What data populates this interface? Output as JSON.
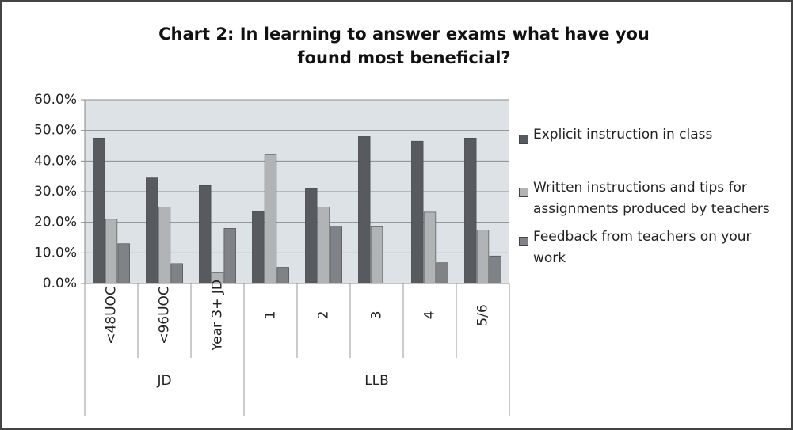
{
  "chart_data": {
    "type": "bar",
    "title": "Chart 2: In learning to answer exams what have you found most beneficial?",
    "groups": [
      {
        "name": "JD",
        "categories": [
          "<48UOC",
          "<96UOC",
          "Year 3+ JD"
        ]
      },
      {
        "name": "LLB",
        "categories": [
          "1",
          "2",
          "3",
          "4",
          "5/6"
        ]
      }
    ],
    "series": [
      {
        "name": "Explicit instruction in class",
        "color": "#575b60",
        "values": [
          47.5,
          34.5,
          32,
          23.5,
          31,
          48,
          46.5,
          47.5
        ]
      },
      {
        "name": "Written instructions and tips for assignments produced by teachers",
        "color": "#b1b4b7",
        "values": [
          21,
          25,
          3.5,
          42,
          25,
          18.5,
          23.3,
          17.5
        ]
      },
      {
        "name": "Feedback from teachers on your work",
        "color": "#7f8286",
        "values": [
          13,
          6.5,
          18,
          5.3,
          18.8,
          0,
          6.8,
          9
        ]
      }
    ],
    "ylim": [
      0,
      60
    ],
    "yticks": [
      {
        "value": 0,
        "label": "0.0%"
      },
      {
        "value": 10,
        "label": "10.0%"
      },
      {
        "value": 20,
        "label": "20.0%"
      },
      {
        "value": 30,
        "label": "30.0%"
      },
      {
        "value": 40,
        "label": "40.0%"
      },
      {
        "value": 50,
        "label": "50.0%"
      },
      {
        "value": 60,
        "label": "60.0%"
      }
    ],
    "grid": true
  }
}
